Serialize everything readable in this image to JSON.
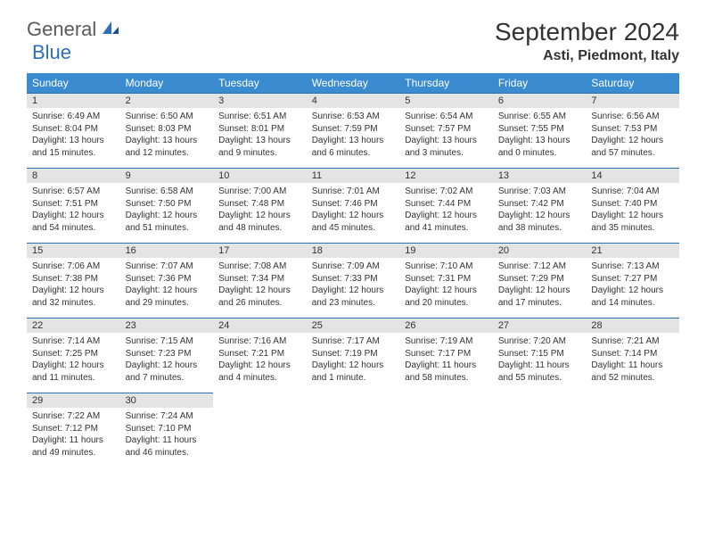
{
  "brand": {
    "part1": "General",
    "part2": "Blue"
  },
  "title": "September 2024",
  "location": "Asti, Piedmont, Italy",
  "colors": {
    "header_bg": "#3b8bd1",
    "cell_border": "#2d6fb5",
    "daynum_bg": "#e4e4e4",
    "text": "#333333"
  },
  "day_headers": [
    "Sunday",
    "Monday",
    "Tuesday",
    "Wednesday",
    "Thursday",
    "Friday",
    "Saturday"
  ],
  "weeks": [
    [
      {
        "n": "1",
        "sr": "6:49 AM",
        "ss": "8:04 PM",
        "dl": "13 hours and 15 minutes."
      },
      {
        "n": "2",
        "sr": "6:50 AM",
        "ss": "8:03 PM",
        "dl": "13 hours and 12 minutes."
      },
      {
        "n": "3",
        "sr": "6:51 AM",
        "ss": "8:01 PM",
        "dl": "13 hours and 9 minutes."
      },
      {
        "n": "4",
        "sr": "6:53 AM",
        "ss": "7:59 PM",
        "dl": "13 hours and 6 minutes."
      },
      {
        "n": "5",
        "sr": "6:54 AM",
        "ss": "7:57 PM",
        "dl": "13 hours and 3 minutes."
      },
      {
        "n": "6",
        "sr": "6:55 AM",
        "ss": "7:55 PM",
        "dl": "13 hours and 0 minutes."
      },
      {
        "n": "7",
        "sr": "6:56 AM",
        "ss": "7:53 PM",
        "dl": "12 hours and 57 minutes."
      }
    ],
    [
      {
        "n": "8",
        "sr": "6:57 AM",
        "ss": "7:51 PM",
        "dl": "12 hours and 54 minutes."
      },
      {
        "n": "9",
        "sr": "6:58 AM",
        "ss": "7:50 PM",
        "dl": "12 hours and 51 minutes."
      },
      {
        "n": "10",
        "sr": "7:00 AM",
        "ss": "7:48 PM",
        "dl": "12 hours and 48 minutes."
      },
      {
        "n": "11",
        "sr": "7:01 AM",
        "ss": "7:46 PM",
        "dl": "12 hours and 45 minutes."
      },
      {
        "n": "12",
        "sr": "7:02 AM",
        "ss": "7:44 PM",
        "dl": "12 hours and 41 minutes."
      },
      {
        "n": "13",
        "sr": "7:03 AM",
        "ss": "7:42 PM",
        "dl": "12 hours and 38 minutes."
      },
      {
        "n": "14",
        "sr": "7:04 AM",
        "ss": "7:40 PM",
        "dl": "12 hours and 35 minutes."
      }
    ],
    [
      {
        "n": "15",
        "sr": "7:06 AM",
        "ss": "7:38 PM",
        "dl": "12 hours and 32 minutes."
      },
      {
        "n": "16",
        "sr": "7:07 AM",
        "ss": "7:36 PM",
        "dl": "12 hours and 29 minutes."
      },
      {
        "n": "17",
        "sr": "7:08 AM",
        "ss": "7:34 PM",
        "dl": "12 hours and 26 minutes."
      },
      {
        "n": "18",
        "sr": "7:09 AM",
        "ss": "7:33 PM",
        "dl": "12 hours and 23 minutes."
      },
      {
        "n": "19",
        "sr": "7:10 AM",
        "ss": "7:31 PM",
        "dl": "12 hours and 20 minutes."
      },
      {
        "n": "20",
        "sr": "7:12 AM",
        "ss": "7:29 PM",
        "dl": "12 hours and 17 minutes."
      },
      {
        "n": "21",
        "sr": "7:13 AM",
        "ss": "7:27 PM",
        "dl": "12 hours and 14 minutes."
      }
    ],
    [
      {
        "n": "22",
        "sr": "7:14 AM",
        "ss": "7:25 PM",
        "dl": "12 hours and 11 minutes."
      },
      {
        "n": "23",
        "sr": "7:15 AM",
        "ss": "7:23 PM",
        "dl": "12 hours and 7 minutes."
      },
      {
        "n": "24",
        "sr": "7:16 AM",
        "ss": "7:21 PM",
        "dl": "12 hours and 4 minutes."
      },
      {
        "n": "25",
        "sr": "7:17 AM",
        "ss": "7:19 PM",
        "dl": "12 hours and 1 minute."
      },
      {
        "n": "26",
        "sr": "7:19 AM",
        "ss": "7:17 PM",
        "dl": "11 hours and 58 minutes."
      },
      {
        "n": "27",
        "sr": "7:20 AM",
        "ss": "7:15 PM",
        "dl": "11 hours and 55 minutes."
      },
      {
        "n": "28",
        "sr": "7:21 AM",
        "ss": "7:14 PM",
        "dl": "11 hours and 52 minutes."
      }
    ],
    [
      {
        "n": "29",
        "sr": "7:22 AM",
        "ss": "7:12 PM",
        "dl": "11 hours and 49 minutes."
      },
      {
        "n": "30",
        "sr": "7:24 AM",
        "ss": "7:10 PM",
        "dl": "11 hours and 46 minutes."
      },
      null,
      null,
      null,
      null,
      null
    ]
  ],
  "labels": {
    "sunrise": "Sunrise: ",
    "sunset": "Sunset: ",
    "daylight": "Daylight: "
  }
}
